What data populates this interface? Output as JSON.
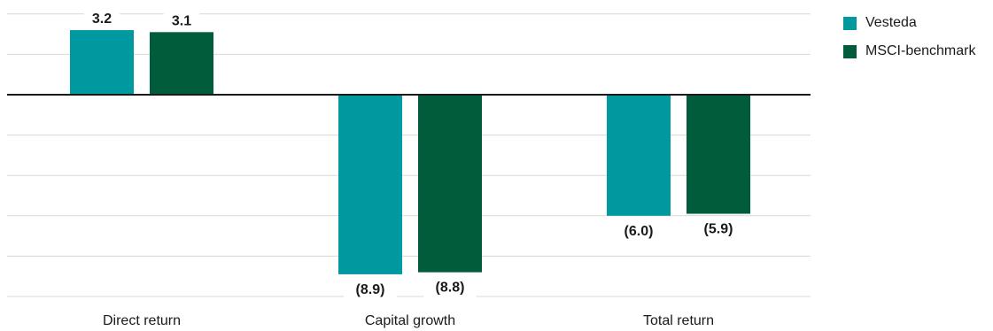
{
  "chart_data": {
    "type": "bar",
    "categories": [
      "Direct return",
      "Capital growth",
      "Total return"
    ],
    "series": [
      {
        "name": "Vesteda",
        "values": [
          3.2,
          -8.9,
          -6.0
        ],
        "labels": [
          "3.2",
          "(8.9)",
          "(6.0)"
        ],
        "color": "#00999f"
      },
      {
        "name": "MSCI-benchmark",
        "values": [
          3.1,
          -8.8,
          -5.9
        ],
        "labels": [
          "3.1",
          "(8.8)",
          "(5.9)"
        ],
        "color": "#005c3a"
      }
    ],
    "ylim": [
      -10,
      4
    ],
    "grid": true,
    "legend": "top-right",
    "title": "",
    "xlabel": "",
    "ylabel": ""
  },
  "colors": {
    "grid": "#d9d9d0",
    "zero_line": "#1a1a1a",
    "text": "#1a1a1a"
  }
}
